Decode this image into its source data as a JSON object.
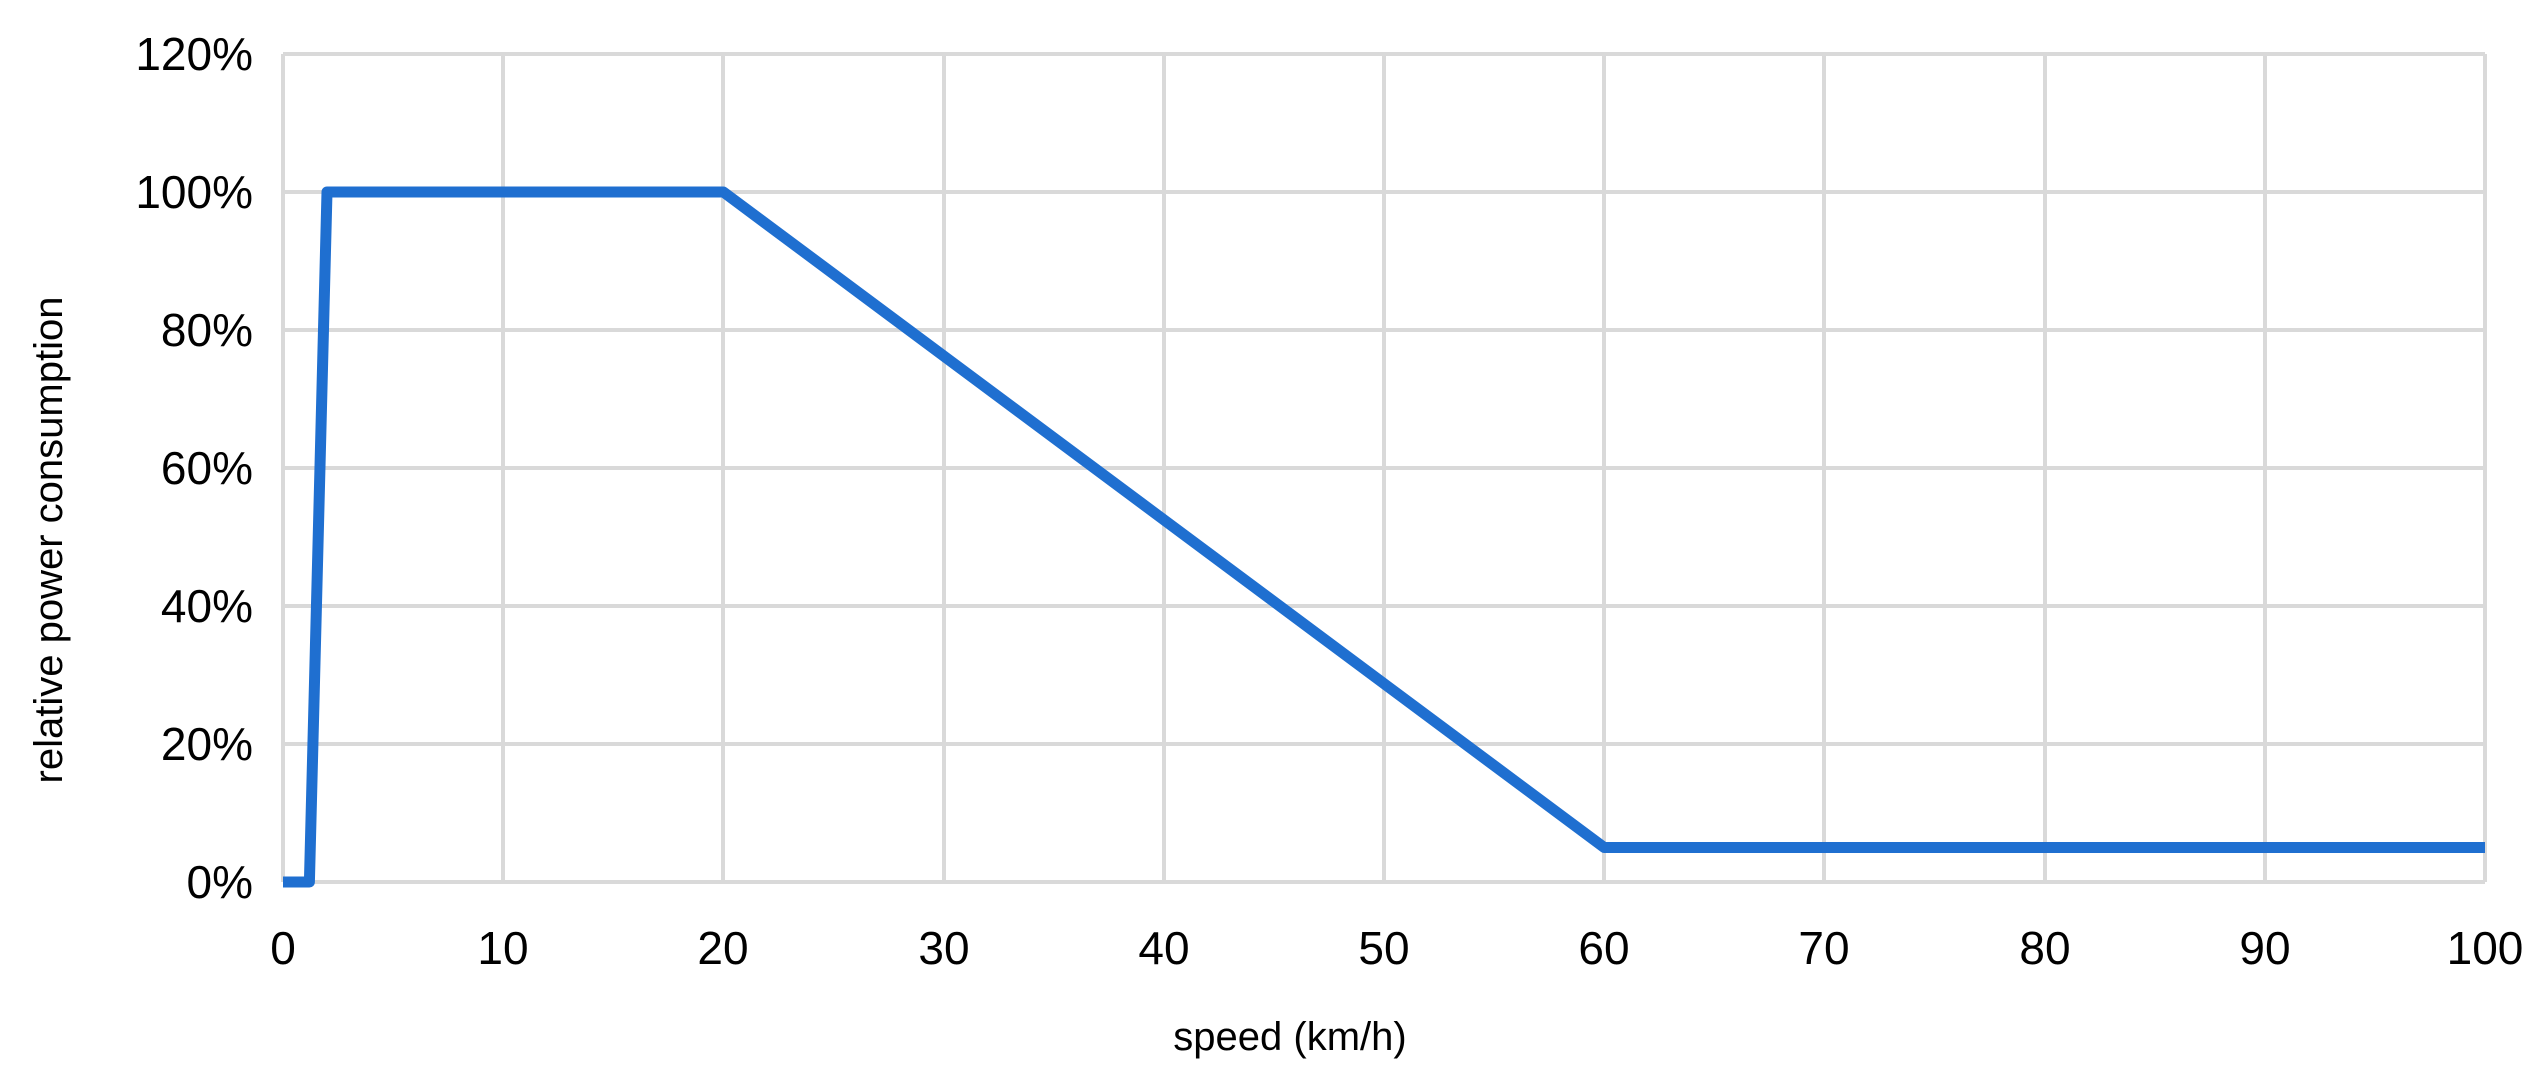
{
  "chart_data": {
    "type": "line",
    "title": "",
    "xlabel": "speed (km/h)",
    "ylabel": "relative power consumption",
    "xlim": [
      0,
      100
    ],
    "ylim": [
      0,
      1.2
    ],
    "x_ticks": [
      0,
      10,
      20,
      30,
      40,
      50,
      60,
      70,
      80,
      90,
      100
    ],
    "x_tick_labels": [
      "0",
      "10",
      "20",
      "30",
      "40",
      "50",
      "60",
      "70",
      "80",
      "90",
      "100"
    ],
    "y_ticks": [
      0,
      0.2,
      0.4,
      0.6,
      0.8,
      1.0,
      1.2
    ],
    "y_tick_labels": [
      "0%",
      "20%",
      "40%",
      "60%",
      "80%",
      "100%",
      "120%"
    ],
    "grid": true,
    "legend": "none",
    "series": [
      {
        "name": "relative power consumption",
        "color": "#1f6fd0",
        "x": [
          0,
          1.2,
          2,
          20,
          60,
          100
        ],
        "y": [
          0,
          0,
          1.0,
          1.0,
          0.05,
          0.05
        ]
      }
    ]
  }
}
